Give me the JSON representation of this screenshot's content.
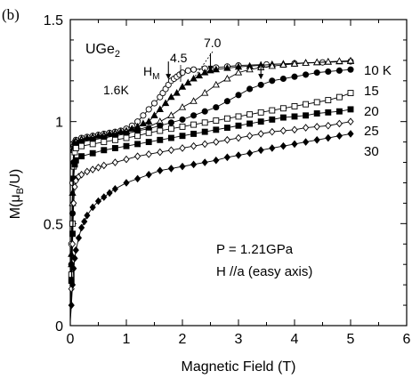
{
  "panel_label": "(b)",
  "chart_data": {
    "type": "scatter",
    "compound": "UGe",
    "compound_sub": "2",
    "xlabel": "Magnetic Field (T)",
    "ylabel_main": "M(μ",
    "ylabel_sub": "B",
    "ylabel_end": "/U)",
    "xlim": [
      0,
      6
    ],
    "ylim": [
      0,
      1.5
    ],
    "xticks": [
      0,
      1,
      2,
      3,
      4,
      5,
      6
    ],
    "yticks": [
      0,
      0.5,
      1,
      1.5
    ],
    "ytick_labels": [
      "0",
      "0.5",
      "1",
      "1.5"
    ],
    "annotations": {
      "hm_main": "H",
      "hm_sub": "M",
      "t16": "1.6K",
      "t45": "4.5",
      "t70": "7.0",
      "pressure": "P = 1.21GPa",
      "field_dir": "H //a (easy axis)"
    },
    "arrows_hm_T": [
      1.75,
      2.5,
      3.4
    ],
    "series": [
      {
        "name": "1.6K",
        "marker": "circle-open",
        "x": [
          0,
          0.02,
          0.04,
          0.06,
          0.08,
          0.1,
          0.2,
          0.3,
          0.4,
          0.5,
          0.6,
          0.7,
          0.8,
          0.9,
          1.0,
          1.1,
          1.2,
          1.3,
          1.4,
          1.5,
          1.6,
          1.65,
          1.7,
          1.75,
          1.8,
          1.85,
          1.9,
          1.95,
          2.0,
          2.1,
          2.2,
          2.4,
          2.6,
          2.8,
          3.0,
          3.5,
          4.0,
          4.5,
          5.0
        ],
        "y": [
          0.1,
          0.4,
          0.7,
          0.88,
          0.9,
          0.91,
          0.92,
          0.925,
          0.93,
          0.935,
          0.94,
          0.945,
          0.95,
          0.955,
          0.965,
          0.98,
          1.0,
          1.03,
          1.06,
          1.09,
          1.12,
          1.14,
          1.16,
          1.18,
          1.2,
          1.21,
          1.22,
          1.23,
          1.24,
          1.25,
          1.255,
          1.26,
          1.265,
          1.27,
          1.275,
          1.28,
          1.285,
          1.29,
          1.295
        ]
      },
      {
        "name": "4.5",
        "marker": "triangle-filled",
        "x": [
          0,
          0.02,
          0.04,
          0.06,
          0.08,
          0.1,
          0.2,
          0.3,
          0.4,
          0.5,
          0.6,
          0.7,
          0.8,
          0.9,
          1.0,
          1.1,
          1.2,
          1.3,
          1.4,
          1.5,
          1.6,
          1.7,
          1.8,
          1.9,
          2.0,
          2.1,
          2.2,
          2.3,
          2.4,
          2.5,
          2.6,
          2.8,
          3.0,
          3.2,
          3.4,
          3.6,
          3.8,
          4.0,
          4.2,
          4.4,
          4.6,
          4.8,
          5.0
        ],
        "y": [
          0.08,
          0.35,
          0.65,
          0.87,
          0.9,
          0.905,
          0.915,
          0.92,
          0.925,
          0.93,
          0.935,
          0.94,
          0.945,
          0.95,
          0.955,
          0.965,
          0.975,
          0.99,
          1.0,
          1.03,
          1.06,
          1.09,
          1.12,
          1.14,
          1.17,
          1.19,
          1.21,
          1.225,
          1.24,
          1.25,
          1.255,
          1.262,
          1.268,
          1.272,
          1.276,
          1.28,
          1.283,
          1.285,
          1.288,
          1.29,
          1.292,
          1.294,
          1.296
        ]
      },
      {
        "name": "7.0",
        "marker": "triangle-open",
        "x": [
          0,
          0.02,
          0.04,
          0.06,
          0.08,
          0.1,
          0.2,
          0.4,
          0.6,
          0.8,
          1.0,
          1.2,
          1.4,
          1.6,
          1.8,
          2.0,
          2.2,
          2.4,
          2.6,
          2.8,
          3.0,
          3.2,
          3.4,
          3.6,
          3.8,
          4.0,
          4.2,
          4.4,
          4.6,
          4.8,
          5.0
        ],
        "y": [
          0.08,
          0.3,
          0.6,
          0.86,
          0.89,
          0.9,
          0.91,
          0.92,
          0.93,
          0.94,
          0.95,
          0.96,
          0.975,
          1.0,
          1.03,
          1.07,
          1.1,
          1.14,
          1.18,
          1.21,
          1.24,
          1.255,
          1.265,
          1.272,
          1.278,
          1.283,
          1.287,
          1.29,
          1.293,
          1.296,
          1.298
        ]
      },
      {
        "name": "10 K",
        "marker": "circle-filled",
        "x": [
          0,
          0.02,
          0.04,
          0.06,
          0.08,
          0.1,
          0.2,
          0.4,
          0.6,
          0.8,
          1.0,
          1.2,
          1.4,
          1.6,
          1.8,
          2.0,
          2.2,
          2.4,
          2.6,
          2.8,
          3.0,
          3.2,
          3.4,
          3.6,
          3.8,
          4.0,
          4.2,
          4.4,
          4.6,
          4.8,
          5.0
        ],
        "y": [
          0.06,
          0.3,
          0.55,
          0.8,
          0.87,
          0.89,
          0.9,
          0.91,
          0.92,
          0.93,
          0.94,
          0.955,
          0.965,
          0.98,
          0.995,
          1.01,
          1.03,
          1.05,
          1.07,
          1.1,
          1.13,
          1.16,
          1.18,
          1.2,
          1.21,
          1.22,
          1.23,
          1.24,
          1.245,
          1.25,
          1.255
        ]
      },
      {
        "name": "15",
        "marker": "square-open",
        "x": [
          0,
          0.02,
          0.04,
          0.06,
          0.08,
          0.1,
          0.2,
          0.4,
          0.6,
          0.8,
          1.0,
          1.2,
          1.4,
          1.6,
          1.8,
          2.0,
          2.2,
          2.4,
          2.6,
          2.8,
          3.0,
          3.2,
          3.4,
          3.6,
          3.8,
          4.0,
          4.2,
          4.4,
          4.6,
          4.8,
          5.0
        ],
        "y": [
          0.05,
          0.25,
          0.5,
          0.78,
          0.85,
          0.87,
          0.88,
          0.89,
          0.9,
          0.91,
          0.92,
          0.93,
          0.945,
          0.955,
          0.965,
          0.975,
          0.985,
          0.995,
          1.005,
          1.015,
          1.025,
          1.035,
          1.045,
          1.055,
          1.065,
          1.075,
          1.085,
          1.095,
          1.105,
          1.12,
          1.14
        ]
      },
      {
        "name": "20",
        "marker": "square-filled",
        "x": [
          0,
          0.02,
          0.04,
          0.06,
          0.08,
          0.1,
          0.2,
          0.4,
          0.6,
          0.8,
          1.0,
          1.2,
          1.4,
          1.6,
          1.8,
          2.0,
          2.2,
          2.4,
          2.6,
          2.8,
          3.0,
          3.2,
          3.4,
          3.6,
          3.8,
          4.0,
          4.2,
          4.4,
          4.6,
          4.8,
          5.0
        ],
        "y": [
          0.04,
          0.22,
          0.45,
          0.72,
          0.79,
          0.81,
          0.83,
          0.845,
          0.86,
          0.87,
          0.88,
          0.89,
          0.9,
          0.91,
          0.92,
          0.93,
          0.94,
          0.95,
          0.96,
          0.97,
          0.98,
          0.99,
          1.0,
          1.01,
          1.02,
          1.025,
          1.03,
          1.04,
          1.045,
          1.05,
          1.06
        ]
      },
      {
        "name": "25",
        "marker": "diamond-open",
        "x": [
          0,
          0.02,
          0.04,
          0.06,
          0.08,
          0.1,
          0.15,
          0.2,
          0.3,
          0.4,
          0.5,
          0.6,
          0.8,
          1.0,
          1.2,
          1.4,
          1.6,
          1.8,
          2.0,
          2.2,
          2.4,
          2.6,
          2.8,
          3.0,
          3.2,
          3.4,
          3.6,
          3.8,
          4.0,
          4.2,
          4.4,
          4.6,
          4.8,
          5.0
        ],
        "y": [
          0.03,
          0.18,
          0.4,
          0.6,
          0.68,
          0.71,
          0.73,
          0.74,
          0.755,
          0.765,
          0.775,
          0.785,
          0.8,
          0.815,
          0.83,
          0.84,
          0.85,
          0.86,
          0.87,
          0.88,
          0.89,
          0.9,
          0.91,
          0.92,
          0.93,
          0.94,
          0.95,
          0.955,
          0.96,
          0.97,
          0.975,
          0.98,
          0.99,
          1.0
        ]
      },
      {
        "name": "30",
        "marker": "diamond-filled",
        "x": [
          0,
          0.02,
          0.04,
          0.06,
          0.08,
          0.1,
          0.15,
          0.2,
          0.25,
          0.3,
          0.4,
          0.5,
          0.6,
          0.7,
          0.8,
          1.0,
          1.2,
          1.4,
          1.6,
          1.8,
          2.0,
          2.2,
          2.4,
          2.6,
          2.8,
          3.0,
          3.2,
          3.4,
          3.6,
          3.8,
          4.0,
          4.2,
          4.4,
          4.6,
          4.8,
          5.0
        ],
        "y": [
          0.02,
          0.1,
          0.2,
          0.28,
          0.33,
          0.37,
          0.43,
          0.48,
          0.51,
          0.54,
          0.58,
          0.61,
          0.63,
          0.65,
          0.67,
          0.7,
          0.72,
          0.74,
          0.76,
          0.77,
          0.78,
          0.79,
          0.8,
          0.81,
          0.825,
          0.835,
          0.845,
          0.86,
          0.87,
          0.88,
          0.89,
          0.9,
          0.91,
          0.92,
          0.93,
          0.94
        ]
      }
    ]
  }
}
